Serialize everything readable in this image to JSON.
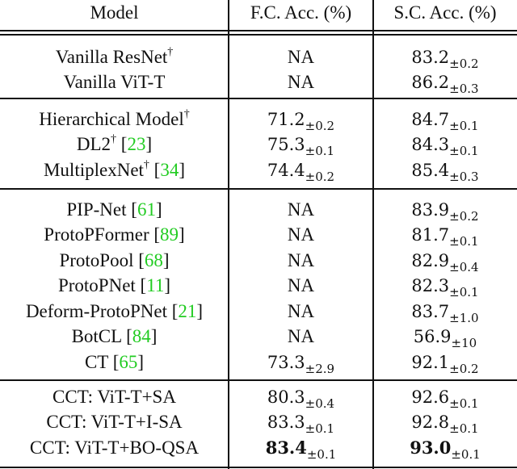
{
  "header": {
    "model": "Model",
    "fc": "F.C. Acc. (%)",
    "sc": "S.C. Acc. (%)"
  },
  "citation_color": "#22cc22",
  "groups": [
    [
      {
        "model": "Vanilla ResNet",
        "dagger": "†",
        "cite": "",
        "fc": "NA",
        "fc_sd": "",
        "sc": "83.2",
        "sc_sd": "±0.2"
      },
      {
        "model": "Vanilla ViT-T",
        "dagger": "",
        "cite": "",
        "fc": "NA",
        "fc_sd": "",
        "sc": "86.2",
        "sc_sd": "±0.3"
      }
    ],
    [
      {
        "model": "Hierarchical Model",
        "dagger": "†",
        "cite": "",
        "fc": "71.2",
        "fc_sd": "±0.2",
        "sc": "84.7",
        "sc_sd": "±0.1"
      },
      {
        "model": "DL2",
        "dagger": "†",
        "cite": "23",
        "fc": "75.3",
        "fc_sd": "±0.1",
        "sc": "84.3",
        "sc_sd": "±0.1"
      },
      {
        "model": "MultiplexNet",
        "dagger": "†",
        "cite": "34",
        "fc": "74.4",
        "fc_sd": "±0.2",
        "sc": "85.4",
        "sc_sd": "±0.3"
      }
    ],
    [
      {
        "model": "PIP-Net",
        "dagger": "",
        "cite": "61",
        "fc": "NA",
        "fc_sd": "",
        "sc": "83.9",
        "sc_sd": "±0.2"
      },
      {
        "model": "ProtoPFormer",
        "dagger": "",
        "cite": "89",
        "fc": "NA",
        "fc_sd": "",
        "sc": "81.7",
        "sc_sd": "±0.1"
      },
      {
        "model": "ProtoPool",
        "dagger": "",
        "cite": "68",
        "fc": "NA",
        "fc_sd": "",
        "sc": "82.9",
        "sc_sd": "±0.4"
      },
      {
        "model": "ProtoPNet",
        "dagger": "",
        "cite": "11",
        "fc": "NA",
        "fc_sd": "",
        "sc": "82.3",
        "sc_sd": "±0.1"
      },
      {
        "model": "Deform-ProtoPNet",
        "dagger": "",
        "cite": "21",
        "fc": "NA",
        "fc_sd": "",
        "sc": "83.7",
        "sc_sd": "±1.0"
      },
      {
        "model": "BotCL",
        "dagger": "",
        "cite": "84",
        "fc": "NA",
        "fc_sd": "",
        "sc": "56.9",
        "sc_sd": "±10"
      },
      {
        "model": "CT",
        "dagger": "",
        "cite": "65",
        "fc": "73.3",
        "fc_sd": "±2.9",
        "sc": "92.1",
        "sc_sd": "±0.2"
      }
    ],
    [
      {
        "model": "CCT: ViT-T+SA",
        "dagger": "",
        "cite": "",
        "fc": "80.3",
        "fc_sd": "±0.4",
        "sc": "92.6",
        "sc_sd": "±0.1"
      },
      {
        "model": "CCT: ViT-T+I-SA",
        "dagger": "",
        "cite": "",
        "fc": "83.3",
        "fc_sd": "±0.1",
        "sc": "92.8",
        "sc_sd": "±0.1"
      },
      {
        "model": "CCT: ViT-T+BO-QSA",
        "dagger": "",
        "cite": "",
        "fc": "83.4",
        "fc_sd": "±0.1",
        "sc": "93.0",
        "sc_sd": "±0.1",
        "fc_bold": true,
        "sc_bold": true
      }
    ]
  ]
}
